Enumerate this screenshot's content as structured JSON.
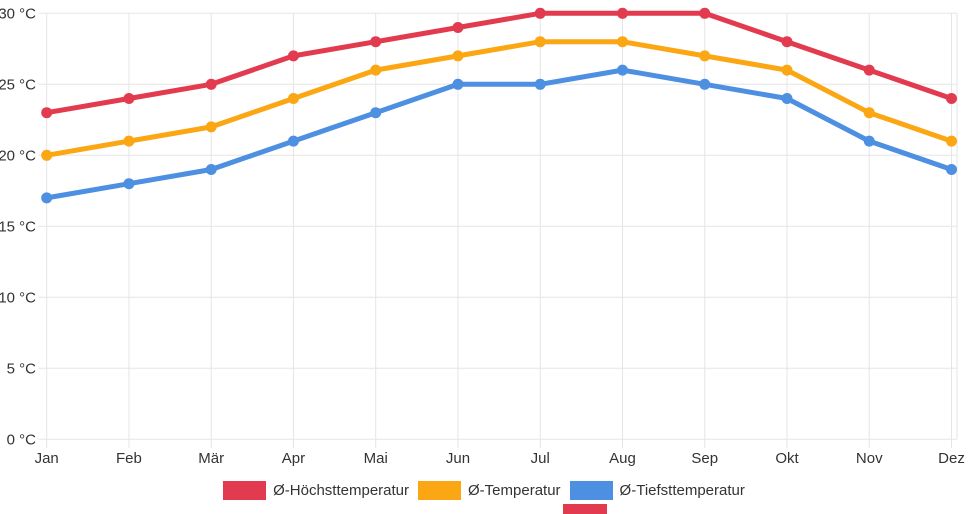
{
  "chart_data": {
    "type": "line",
    "title": "",
    "categories": [
      "Jan",
      "Feb",
      "Mär",
      "Apr",
      "Mai",
      "Jun",
      "Jul",
      "Aug",
      "Sep",
      "Okt",
      "Nov",
      "Dez"
    ],
    "series": [
      {
        "name": "Ø-Höchsttemperatur",
        "color": "#e23b4f",
        "values": [
          23,
          24,
          25,
          27,
          28,
          29,
          30,
          30,
          30,
          28,
          26,
          24
        ]
      },
      {
        "name": "Ø-Temperatur",
        "color": "#fba613",
        "values": [
          20,
          21,
          22,
          24,
          26,
          27,
          28,
          28,
          27,
          26,
          23,
          21
        ]
      },
      {
        "name": "Ø-Tiefsttemperatur",
        "color": "#4d8fe0",
        "values": [
          17,
          18,
          19,
          21,
          23,
          25,
          25,
          26,
          25,
          24,
          21,
          19
        ]
      }
    ],
    "ylim": [
      0,
      30
    ],
    "yticks": [
      0,
      5,
      10,
      15,
      20,
      25,
      30
    ],
    "ytick_labels": [
      "0 °C",
      "5 °C",
      "10 °C",
      "15 °C",
      "20 °C",
      "25 °C",
      "30 °C"
    ],
    "xlabel": "",
    "ylabel": "",
    "grid": true,
    "legend_position": "bottom"
  },
  "colors": {
    "grid": "#e5e5e5",
    "axis_text": "#333333",
    "background": "#ffffff",
    "partial_bottom_swatch": "#e23b4f"
  }
}
